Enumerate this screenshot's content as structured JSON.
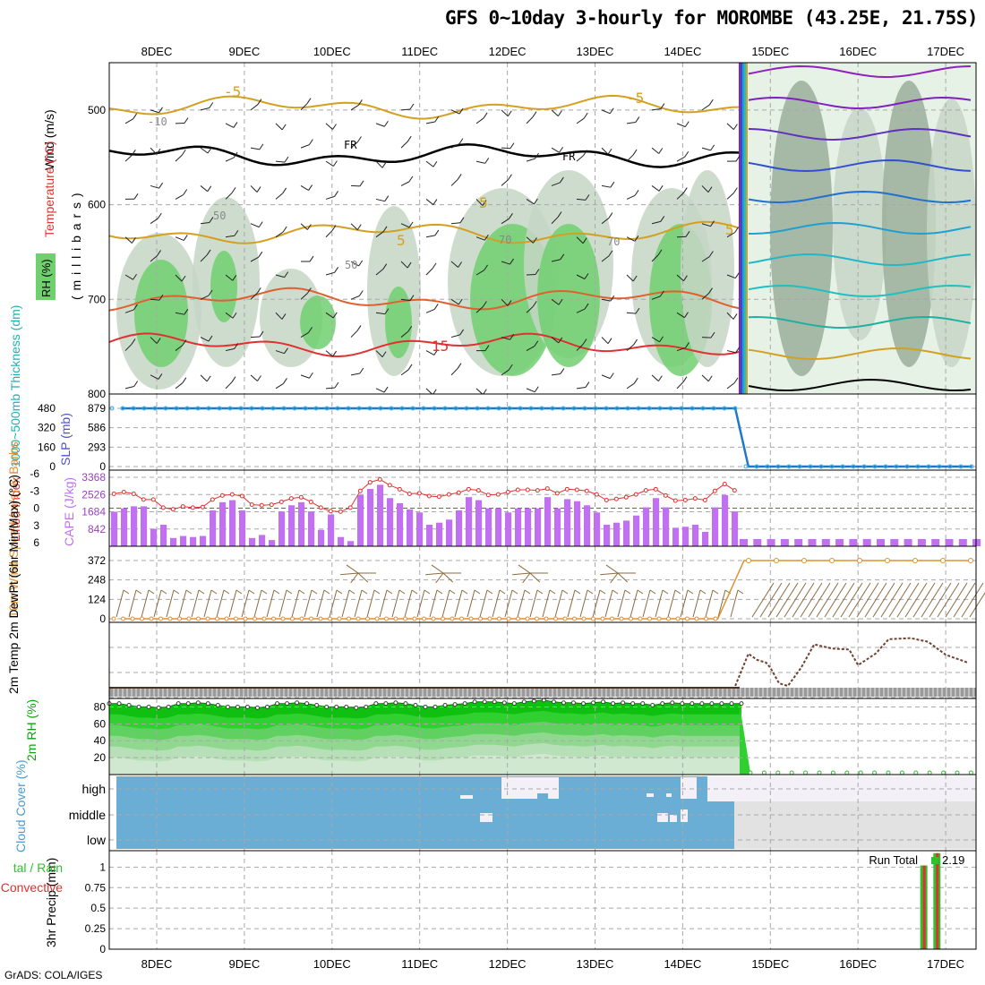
{
  "title": "GFS 0~10day 3-hourly for MOROMBE (43.25E, 21.75S)",
  "credit": "GrADS: COLA/IGES",
  "colors": {
    "rh_light": "#e6f2e6",
    "rh_mid": "#c6d6c6",
    "rh_dark": "#9aae9a",
    "rh_green": "#70d070",
    "temp_neg": "#d4a020",
    "temp_pos": "#e06030",
    "temp_15": "#e03030",
    "freezing": "#000000",
    "sfc_line": "#1f78c8",
    "lifted": "#e03030",
    "cape": "#c070f0",
    "wind10": "#e09030",
    "barb": "#8a6a40",
    "dewpt": "#704030",
    "rh2m": "#10c010",
    "cloud": "#6aaed6",
    "cloud_clear": "#f4f0f8",
    "precip_total": "#30c030",
    "precip_conv": "#e03030"
  },
  "chart_data": [
    {
      "panel": "upper-air",
      "type": "heatmap",
      "x_categories": [
        "8DEC",
        "9DEC",
        "10DEC",
        "11DEC",
        "12DEC",
        "13DEC",
        "14DEC",
        "15DEC",
        "16DEC",
        "17DEC"
      ],
      "ylabel_left": "RH (%)",
      "ylabel_temp": "Temperature (°C)",
      "ylabel_wind": "Wind (m/s)",
      "ylabel_units": "( m i l l i b a r s )",
      "y_ticks": [
        "500",
        "600",
        "700",
        "800"
      ],
      "ylim": [
        450,
        800
      ],
      "contour_labels": [
        "-5",
        "-5",
        "5",
        "5",
        "5",
        "15",
        "FR",
        "FR",
        "-10",
        "50",
        "50",
        "70",
        "70"
      ],
      "temp_levels": [
        {
          "label": "-5",
          "pressure": 497
        },
        {
          "label": "FR",
          "pressure": 548
        },
        {
          "label": "5",
          "pressure": 630
        },
        {
          "label": "10",
          "pressure": 700
        },
        {
          "label": "15",
          "pressure": 748
        }
      ]
    },
    {
      "panel": "thickness-slp",
      "type": "line",
      "ylabel_left": "1000~500mb Thickness (dm)",
      "ylabel_right": "SLP (mb)",
      "y_ticks_thickness": [
        "0",
        "160",
        "320",
        "480"
      ],
      "y_ticks_slp": [
        "0",
        "293",
        "586",
        "879"
      ],
      "values": [
        {
          "day": 7.6,
          "slp": 879
        },
        {
          "day": 14.6,
          "slp": 879
        },
        {
          "day": 14.75,
          "slp": 0
        },
        {
          "day": 17.3,
          "slp": 0
        }
      ]
    },
    {
      "panel": "stability",
      "type": "bar",
      "ylabel_left": "Lifted Index",
      "ylabel_right": "CAPE (J/kg)",
      "y_ticks_li": [
        "-6",
        "-3",
        "0",
        "3",
        "6"
      ],
      "y_ticks_cape": [
        "842",
        "1684",
        "2526",
        "3368"
      ],
      "cape_max": 3368,
      "cape": [
        1684,
        1850,
        1950,
        1950,
        850,
        1050,
        400,
        500,
        450,
        500,
        1750,
        2150,
        2250,
        1750,
        400,
        550,
        300,
        1700,
        2000,
        2150,
        1700,
        800,
        1550,
        450,
        250,
        2500,
        2800,
        3000,
        2350,
        2100,
        1800,
        1650,
        1050,
        1150,
        1300,
        1750,
        2400,
        2250,
        1850,
        1850,
        1650,
        1850,
        1850,
        1850,
        2400,
        1850,
        2300,
        2200,
        2000,
        1650,
        1050,
        1150,
        1250,
        1500,
        1900,
        2350,
        1900,
        900,
        950,
        1050,
        700,
        1900,
        2500,
        1700
      ],
      "lifted_index": [
        -2.5,
        -2.8,
        -2.5,
        -1.5,
        -1.5,
        -0.1,
        0.2,
        -0.3,
        -0.1,
        -0.2,
        -1.5,
        -2.2,
        -2.4,
        -2.1,
        -0.6,
        -0.5,
        -0.6,
        -1.1,
        -1.7,
        -1.9,
        -1.1,
        -0.1,
        0.5,
        0.6,
        -0.1,
        -3.0,
        -4.5,
        -5.0,
        -4.0,
        -3.3,
        -2.5,
        -2.6,
        -2.1,
        -2.0,
        -2.4,
        -2.7,
        -3.3,
        -3.1,
        -2.3,
        -2.4,
        -2.8,
        -3.2,
        -3.2,
        -3.1,
        -3.4,
        -2.6,
        -3.3,
        -3.2,
        -3.0,
        -2.4,
        -1.4,
        -1.6,
        -1.9,
        -2.4,
        -3.1,
        -3.3,
        -2.2,
        -1.3,
        -1.4,
        -1.7,
        -1.4,
        -3.0,
        -4.2,
        -3.1
      ]
    },
    {
      "panel": "wind10m",
      "type": "line",
      "ylabel": "10m Wind Speed (m/s) & Barbs",
      "y_ticks": [
        "0",
        "124",
        "248",
        "372"
      ],
      "values": [
        {
          "day": 7.6,
          "speed": 0
        },
        {
          "day": 14.4,
          "speed": 0
        },
        {
          "day": 14.7,
          "speed": 372
        },
        {
          "day": 17.3,
          "speed": 372
        }
      ]
    },
    {
      "panel": "temp2m",
      "type": "line",
      "ylabel": "2m Temp 2m DewPt (6hr Min/Max) (°C)",
      "dewpt": [
        {
          "day": 14.6,
          "v": 0
        },
        {
          "day": 14.75,
          "v": 0.62
        },
        {
          "day": 14.85,
          "v": 0.5
        },
        {
          "day": 14.95,
          "v": 0.45
        },
        {
          "day": 15.0,
          "v": 0.35
        },
        {
          "day": 15.1,
          "v": 0.05
        },
        {
          "day": 15.2,
          "v": 0.0
        },
        {
          "day": 15.35,
          "v": 0.35
        },
        {
          "day": 15.5,
          "v": 0.8
        },
        {
          "day": 15.7,
          "v": 0.72
        },
        {
          "day": 15.9,
          "v": 0.7
        },
        {
          "day": 16.0,
          "v": 0.4
        },
        {
          "day": 16.2,
          "v": 0.62
        },
        {
          "day": 16.35,
          "v": 0.9
        },
        {
          "day": 16.6,
          "v": 0.92
        },
        {
          "day": 16.8,
          "v": 0.85
        },
        {
          "day": 17.0,
          "v": 0.6
        },
        {
          "day": 17.25,
          "v": 0.45
        }
      ]
    },
    {
      "panel": "rh2m",
      "type": "area",
      "ylabel": "2m RH (%)",
      "y_ticks": [
        "20",
        "40",
        "60",
        "80"
      ],
      "ylim": [
        0,
        90
      ],
      "values": [
        84,
        84,
        82,
        80,
        80,
        79,
        80,
        84,
        84,
        85,
        84,
        82,
        80,
        80,
        80,
        79,
        80,
        84,
        84,
        85,
        84,
        82,
        80,
        80,
        80,
        79,
        80,
        84,
        84,
        85,
        84,
        82,
        80,
        80,
        82,
        83,
        84,
        86,
        86,
        86,
        85,
        84,
        86,
        87,
        88,
        86,
        85,
        85,
        84,
        85,
        86,
        84,
        85,
        84,
        84,
        82,
        84,
        85,
        84,
        84,
        84,
        84,
        84,
        84,
        84
      ]
    },
    {
      "panel": "cloud-cover",
      "type": "heatmap",
      "ylabel": "Cloud Cover (%)",
      "y_ticks": [
        "high",
        "middle",
        "low"
      ]
    },
    {
      "panel": "precip",
      "type": "bar",
      "ylabel_left": "Total / Rain Convective",
      "ylabel_right": "3hr Precip (mm)",
      "y_ticks": [
        "0",
        "0.25",
        "0.5",
        "0.75",
        "1"
      ],
      "run_total_label": "Run Total",
      "run_total_value": "2.19",
      "bars": [
        {
          "day": 16.75,
          "total": 1.02,
          "conv": 1.02
        },
        {
          "day": 16.9,
          "total": 1.17,
          "conv": 1.17
        }
      ]
    }
  ]
}
